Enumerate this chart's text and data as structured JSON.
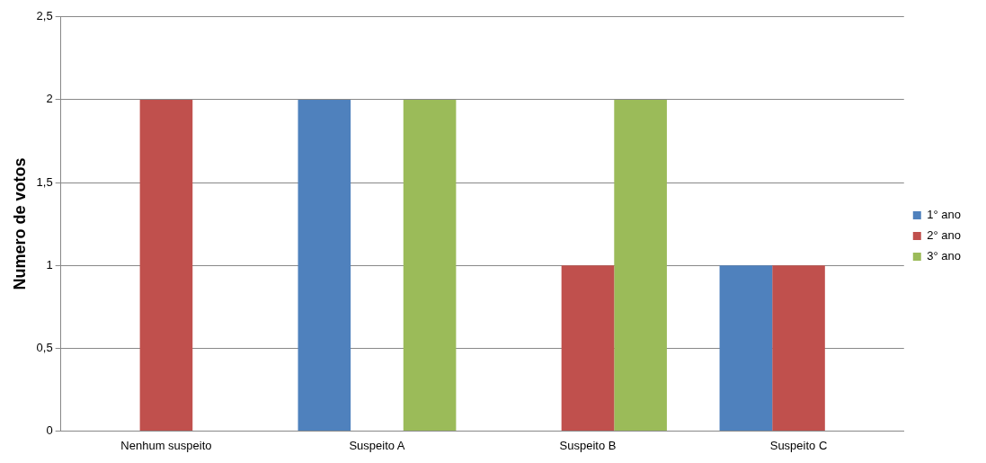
{
  "chart_data": {
    "type": "bar",
    "ylabel": "Numero de votos",
    "categories": [
      "Nenhum suspeito",
      "Suspeito A",
      "Suspeito B",
      "Suspeito C"
    ],
    "series": [
      {
        "name": "1° ano",
        "color": "#4f81bd",
        "values": [
          0,
          2,
          0,
          1
        ]
      },
      {
        "name": "2° ano",
        "color": "#c0504d",
        "values": [
          2,
          0,
          1,
          1
        ]
      },
      {
        "name": "3° ano",
        "color": "#9bbb59",
        "values": [
          0,
          2,
          2,
          0
        ]
      }
    ],
    "ylim": [
      0,
      2.5
    ],
    "yticks": [
      0,
      {
        "value": 0.5,
        "label": "0,5"
      },
      1,
      {
        "value": 1.5,
        "label": "1,5"
      },
      2,
      {
        "value": 2.5,
        "label": "2,5"
      }
    ],
    "grid": "y",
    "legend": "right"
  }
}
